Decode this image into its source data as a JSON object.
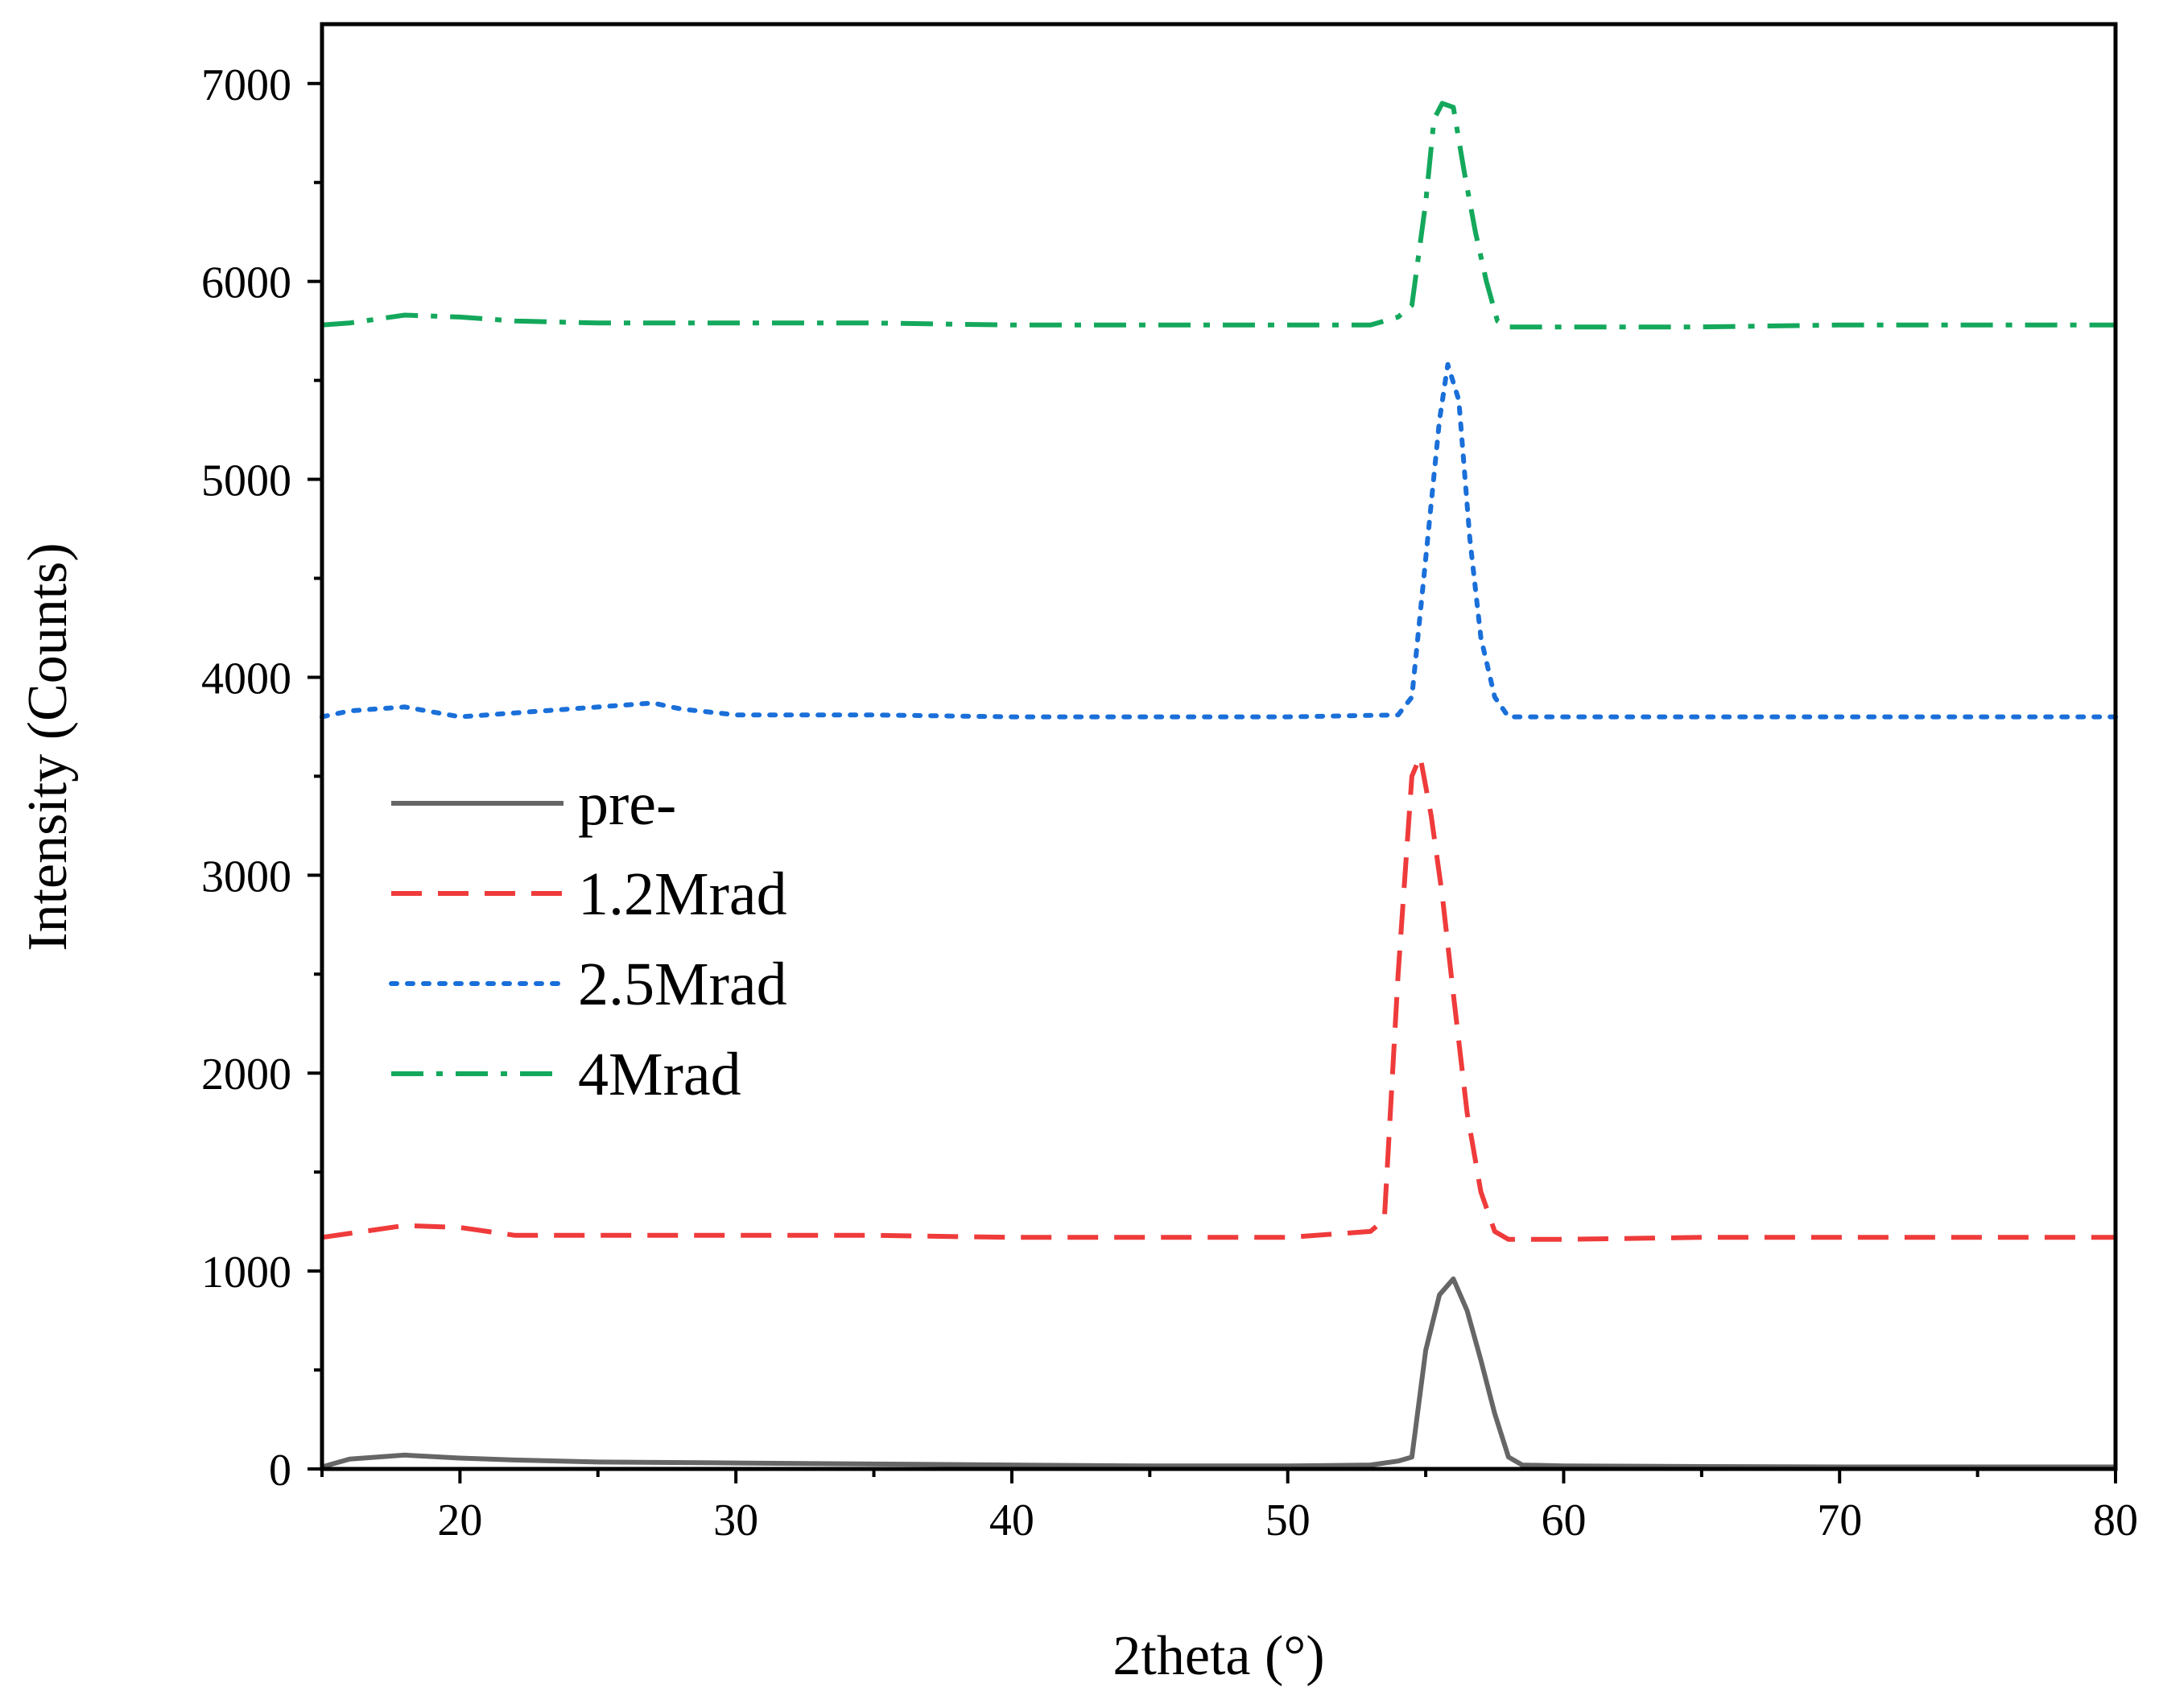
{
  "chart_data": {
    "type": "line",
    "title": "",
    "xlabel": "2theta (°)",
    "ylabel": "Intensity (Counts)",
    "xlim": [
      15,
      80
    ],
    "ylim": [
      0,
      7300
    ],
    "xticks": [
      20,
      30,
      40,
      50,
      60,
      70,
      80
    ],
    "yticks": [
      0,
      1000,
      2000,
      3000,
      4000,
      5000,
      6000,
      7000
    ],
    "legend_position": "middle-left",
    "series": [
      {
        "name": "pre-",
        "color": "#666666",
        "style": "solid",
        "x": [
          15,
          16,
          18,
          20,
          22,
          25,
          30,
          35,
          40,
          45,
          50,
          53,
          54,
          54.5,
          55,
          55.5,
          56,
          56.5,
          57,
          57.5,
          58,
          58.5,
          60,
          65,
          70,
          75,
          80
        ],
        "y": [
          10,
          50,
          70,
          55,
          45,
          35,
          30,
          25,
          20,
          15,
          15,
          20,
          40,
          60,
          600,
          880,
          960,
          800,
          550,
          280,
          60,
          20,
          15,
          12,
          10,
          10,
          10
        ]
      },
      {
        "name": "1.2Mrad",
        "color": "#ef3b3b",
        "style": "dashed",
        "x": [
          15,
          16,
          18,
          20,
          22,
          25,
          30,
          35,
          40,
          45,
          50,
          53,
          53.5,
          54,
          54.5,
          54.8,
          55.2,
          55.6,
          56,
          56.5,
          57,
          57.5,
          58,
          59,
          60,
          65,
          70,
          75,
          80
        ],
        "y": [
          1170,
          1190,
          1230,
          1220,
          1180,
          1180,
          1180,
          1180,
          1170,
          1170,
          1170,
          1200,
          1260,
          2500,
          3500,
          3600,
          3300,
          2900,
          2400,
          1800,
          1400,
          1200,
          1160,
          1160,
          1160,
          1170,
          1170,
          1170,
          1170
        ]
      },
      {
        "name": "2.5Mrad",
        "color": "#1a6fd9",
        "style": "dotted",
        "x": [
          15,
          16,
          18,
          20,
          22,
          24,
          26,
          27,
          28,
          30,
          35,
          40,
          45,
          50,
          54,
          54.5,
          55,
          55.5,
          55.8,
          56.2,
          56.6,
          57,
          57.5,
          58,
          60,
          65,
          70,
          75,
          80
        ],
        "y": [
          3800,
          3830,
          3850,
          3800,
          3820,
          3840,
          3860,
          3870,
          3840,
          3810,
          3810,
          3800,
          3800,
          3800,
          3810,
          3900,
          4600,
          5300,
          5580,
          5400,
          4700,
          4200,
          3900,
          3800,
          3800,
          3800,
          3800,
          3800,
          3800
        ]
      },
      {
        "name": "4Mrad",
        "color": "#14a85c",
        "style": "dashdot",
        "x": [
          15,
          16,
          18,
          20,
          22,
          25,
          30,
          35,
          40,
          45,
          50,
          53,
          54,
          54.5,
          55,
          55.3,
          55.6,
          56,
          56.4,
          56.8,
          57.2,
          57.6,
          58,
          60,
          65,
          70,
          75,
          80
        ],
        "y": [
          5780,
          5790,
          5830,
          5820,
          5800,
          5790,
          5790,
          5790,
          5780,
          5780,
          5780,
          5780,
          5820,
          5880,
          6400,
          6820,
          6900,
          6880,
          6550,
          6250,
          6000,
          5800,
          5770,
          5770,
          5770,
          5780,
          5780,
          5780
        ]
      }
    ]
  }
}
